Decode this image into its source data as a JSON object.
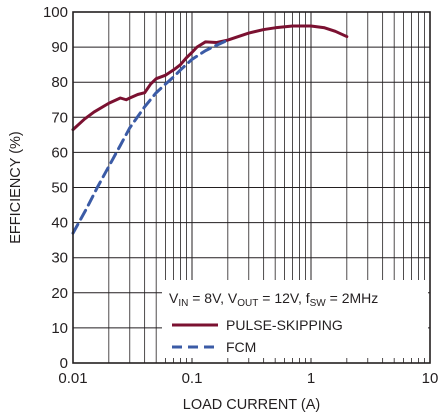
{
  "chart_data": {
    "type": "line",
    "title": "",
    "xlabel": "LOAD CURRENT (A)",
    "ylabel": "EFFICIENCY (%)",
    "xscale": "log",
    "xlim": [
      0.01,
      10
    ],
    "ylim": [
      0,
      100
    ],
    "xticks": [
      {
        "value": 0.01,
        "label": "0.01"
      },
      {
        "value": 0.1,
        "label": "0.1"
      },
      {
        "value": 1,
        "label": "1"
      },
      {
        "value": 10,
        "label": "10"
      }
    ],
    "yticks": [
      {
        "value": 0,
        "label": "0"
      },
      {
        "value": 10,
        "label": "10"
      },
      {
        "value": 20,
        "label": "20"
      },
      {
        "value": 30,
        "label": "30"
      },
      {
        "value": 40,
        "label": "40"
      },
      {
        "value": 50,
        "label": "50"
      },
      {
        "value": 60,
        "label": "60"
      },
      {
        "value": 70,
        "label": "70"
      },
      {
        "value": 80,
        "label": "80"
      },
      {
        "value": 90,
        "label": "90"
      },
      {
        "value": 100,
        "label": "100"
      }
    ],
    "grid": true,
    "legend": {
      "placement": "bottom-right",
      "condition": {
        "parts": [
          {
            "text": "V",
            "style": "normal"
          },
          {
            "text": "IN",
            "style": "sub"
          },
          {
            "text": " = 8V, V",
            "style": "normal"
          },
          {
            "text": "OUT",
            "style": "sub"
          },
          {
            "text": " = 12V, f",
            "style": "normal"
          },
          {
            "text": "SW",
            "style": "sub"
          },
          {
            "text": " = 2MHz",
            "style": "normal"
          }
        ]
      }
    },
    "series": [
      {
        "name": "PULSE-SKIPPING",
        "color": "#7b1131",
        "dash": "solid",
        "x": [
          0.01,
          0.0125,
          0.015,
          0.02,
          0.025,
          0.028,
          0.03,
          0.035,
          0.04,
          0.045,
          0.05,
          0.06,
          0.07,
          0.08,
          0.09,
          0.1,
          0.11,
          0.13,
          0.16,
          0.2,
          0.3,
          0.4,
          0.5,
          0.7,
          1.0,
          1.3,
          1.6,
          2.0
        ],
        "y": [
          66.5,
          69.5,
          71.5,
          74,
          75.5,
          75,
          75.5,
          76.5,
          77,
          79.5,
          81,
          82,
          83.5,
          85,
          87,
          88.5,
          90,
          91.5,
          91.3,
          92,
          94,
          95,
          95.5,
          96,
          96,
          95.5,
          94.5,
          93
        ]
      },
      {
        "name": "FCM",
        "color": "#3b5ba6",
        "dash": "dashed",
        "x": [
          0.01,
          0.013,
          0.016,
          0.02,
          0.025,
          0.03,
          0.04,
          0.05,
          0.06,
          0.07,
          0.08,
          0.1,
          0.13,
          0.16,
          0.2
        ],
        "y": [
          37,
          44,
          50,
          56,
          62,
          67,
          73,
          77,
          79.5,
          81.5,
          83.5,
          86.5,
          89,
          90.5,
          92
        ]
      }
    ]
  }
}
